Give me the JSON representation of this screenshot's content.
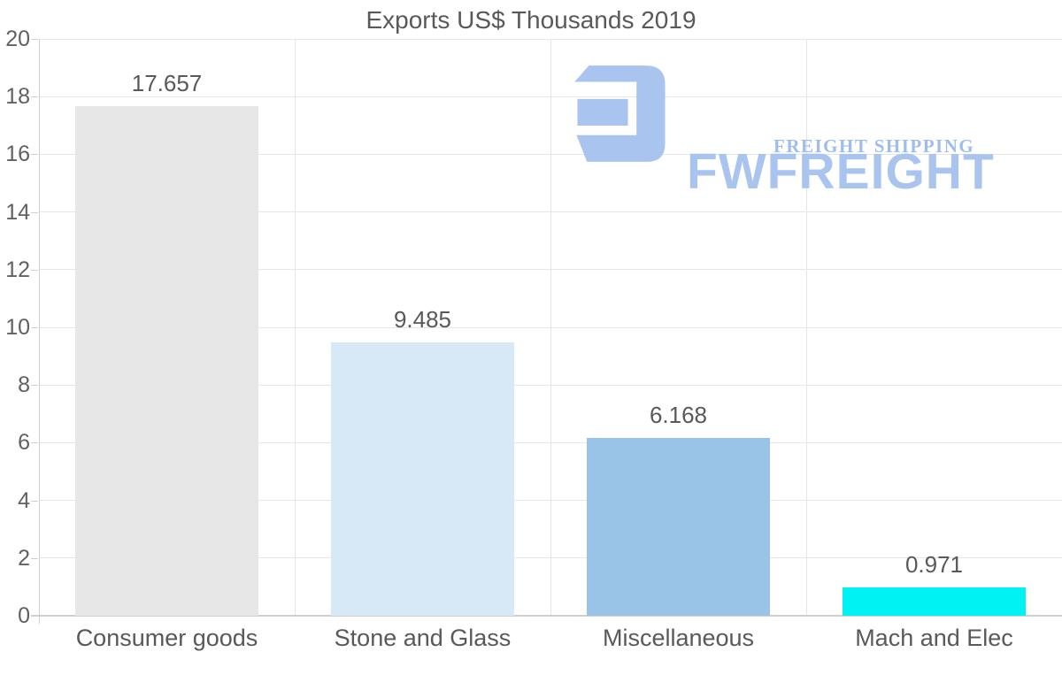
{
  "title": "Exports US$ Thousands 2019",
  "logo": {
    "brand": "FWFREIGHT",
    "tagline": "FREIGHT SHIPPING",
    "color": "#a9c4ef",
    "tagline_color": "#9fbdec",
    "icon": "fw-freight-mark"
  },
  "chart_data": {
    "type": "bar",
    "title": "Exports US$ Thousands 2019",
    "categories": [
      "Consumer goods",
      "Stone and Glass",
      "Miscellaneous",
      "Mach and Elec"
    ],
    "values": [
      17.657,
      9.485,
      6.168,
      0.971
    ],
    "value_labels": [
      "17.657",
      "9.485",
      "6.168",
      "0.971"
    ],
    "bar_colors": [
      "#e7e7e7",
      "#d7e8f7",
      "#99c4e8",
      "#00f2f2"
    ],
    "xlabel": "",
    "ylabel": "",
    "ylim": [
      0,
      20
    ],
    "ytick_step": 2,
    "ytick_labels": [
      "0",
      "2",
      "4",
      "6",
      "8",
      "10",
      "12",
      "14",
      "16",
      "18",
      "20"
    ],
    "grid": true,
    "legend": false,
    "text_color": "#595959",
    "tick_label_color": "#616161",
    "grid_color": "#e6e6e6",
    "axis_color": "#cfcfcf",
    "background_color": "#ffffff"
  }
}
